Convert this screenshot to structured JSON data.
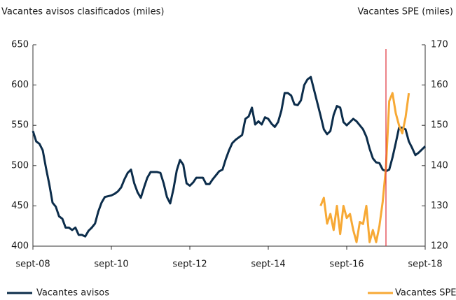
{
  "chart_data": {
    "type": "line",
    "y_label": "Vacantes avisos clasificados (miles)",
    "y2_label": "Vacantes SPE (miles)",
    "x": [
      "2008-09",
      "2008-10",
      "2008-11",
      "2008-12",
      "2009-01",
      "2009-02",
      "2009-03",
      "2009-04",
      "2009-05",
      "2009-06",
      "2009-07",
      "2009-08",
      "2009-09",
      "2009-10",
      "2009-11",
      "2009-12",
      "2010-01",
      "2010-02",
      "2010-03",
      "2010-04",
      "2010-05",
      "2010-06",
      "2010-07",
      "2010-08",
      "2010-09",
      "2010-10",
      "2010-11",
      "2010-12",
      "2011-01",
      "2011-02",
      "2011-03",
      "2011-04",
      "2011-05",
      "2011-06",
      "2011-07",
      "2011-08",
      "2011-09",
      "2011-10",
      "2011-11",
      "2011-12",
      "2012-01",
      "2012-02",
      "2012-03",
      "2012-04",
      "2012-05",
      "2012-06",
      "2012-07",
      "2012-08",
      "2012-09",
      "2012-10",
      "2012-11",
      "2012-12",
      "2013-01",
      "2013-02",
      "2013-03",
      "2013-04",
      "2013-05",
      "2013-06",
      "2013-07",
      "2013-08",
      "2013-09",
      "2013-10",
      "2013-11",
      "2013-12",
      "2014-01",
      "2014-02",
      "2014-03",
      "2014-04",
      "2014-05",
      "2014-06",
      "2014-07",
      "2014-08",
      "2014-09",
      "2014-10",
      "2014-11",
      "2014-12",
      "2015-01",
      "2015-02",
      "2015-03",
      "2015-04",
      "2015-05",
      "2015-06",
      "2015-07",
      "2015-08",
      "2015-09",
      "2015-10",
      "2015-11",
      "2015-12",
      "2016-01",
      "2016-02",
      "2016-03",
      "2016-04",
      "2016-05",
      "2016-06",
      "2016-07",
      "2016-08",
      "2016-09",
      "2016-10",
      "2016-11",
      "2016-12",
      "2017-01",
      "2017-02",
      "2017-03",
      "2017-04",
      "2017-05",
      "2017-06",
      "2017-07",
      "2017-08",
      "2017-09",
      "2017-10",
      "2017-11",
      "2017-12",
      "2018-01",
      "2018-02",
      "2018-03",
      "2018-04",
      "2018-05",
      "2018-06",
      "2018-07",
      "2018-08",
      "2018-09"
    ],
    "series": [
      {
        "name": "Vacantes avisos",
        "color": "#0c2d4b",
        "axis": "y",
        "values": [
          543,
          530,
          527,
          519,
          497,
          477,
          454,
          449,
          437,
          434,
          423,
          423,
          420,
          423,
          414,
          414,
          412,
          419,
          423,
          428,
          443,
          454,
          461,
          462,
          463,
          465,
          468,
          473,
          483,
          491,
          495,
          478,
          467,
          460,
          473,
          485,
          492,
          492,
          492,
          491,
          478,
          461,
          453,
          471,
          494,
          507,
          501,
          478,
          475,
          479,
          485,
          485,
          485,
          477,
          477,
          483,
          488,
          493,
          495,
          508,
          519,
          528,
          532,
          535,
          538,
          558,
          561,
          572,
          551,
          555,
          551,
          560,
          558,
          552,
          548,
          554,
          568,
          590,
          590,
          587,
          576,
          575,
          581,
          600,
          607,
          610,
          594,
          578,
          562,
          545,
          539,
          543,
          563,
          574,
          572,
          554,
          550,
          554,
          558,
          555,
          550,
          545,
          536,
          521,
          509,
          504,
          503,
          495,
          493,
          495,
          510,
          528,
          547,
          547,
          545,
          530,
          522,
          513,
          516,
          520,
          524
        ]
      },
      {
        "name": "Vacantes SPE",
        "color": "#f7a935",
        "axis": "y2",
        "values": [
          null,
          null,
          null,
          null,
          null,
          null,
          null,
          null,
          null,
          null,
          null,
          null,
          null,
          null,
          null,
          null,
          null,
          null,
          null,
          null,
          null,
          null,
          null,
          null,
          null,
          null,
          null,
          null,
          null,
          null,
          null,
          null,
          null,
          null,
          null,
          null,
          null,
          null,
          null,
          null,
          null,
          null,
          null,
          null,
          null,
          null,
          null,
          null,
          null,
          null,
          null,
          null,
          null,
          null,
          null,
          null,
          null,
          null,
          null,
          null,
          null,
          null,
          null,
          null,
          null,
          null,
          null,
          null,
          null,
          null,
          null,
          null,
          null,
          null,
          null,
          null,
          null,
          null,
          null,
          null,
          null,
          null,
          null,
          null,
          null,
          null,
          null,
          null,
          130,
          132,
          125.6,
          128,
          124,
          130,
          123,
          130,
          127,
          128,
          124,
          121,
          126,
          125.5,
          130,
          121,
          124,
          121,
          125,
          131,
          139.5,
          156,
          158,
          153,
          150,
          148,
          152,
          158,
          null,
          null,
          null,
          null,
          null
        ]
      }
    ],
    "xlim": [
      "2008-09",
      "2018-09"
    ],
    "xticks": [
      {
        "value": "2008-09",
        "label": "sept-08"
      },
      {
        "value": "2010-09",
        "label": "sept-10"
      },
      {
        "value": "2012-09",
        "label": "sept-12"
      },
      {
        "value": "2014-09",
        "label": "sept-14"
      },
      {
        "value": "2016-09",
        "label": "sept-16"
      },
      {
        "value": "2018-09",
        "label": "sept-18"
      }
    ],
    "ylim": [
      400,
      650
    ],
    "yticks": [
      400,
      450,
      500,
      550,
      600,
      650
    ],
    "y2lim": [
      120,
      170
    ],
    "y2ticks": [
      120,
      130,
      140,
      150,
      160,
      170
    ],
    "reference_line": {
      "x": "2017-09",
      "color": "#e0303a"
    }
  }
}
